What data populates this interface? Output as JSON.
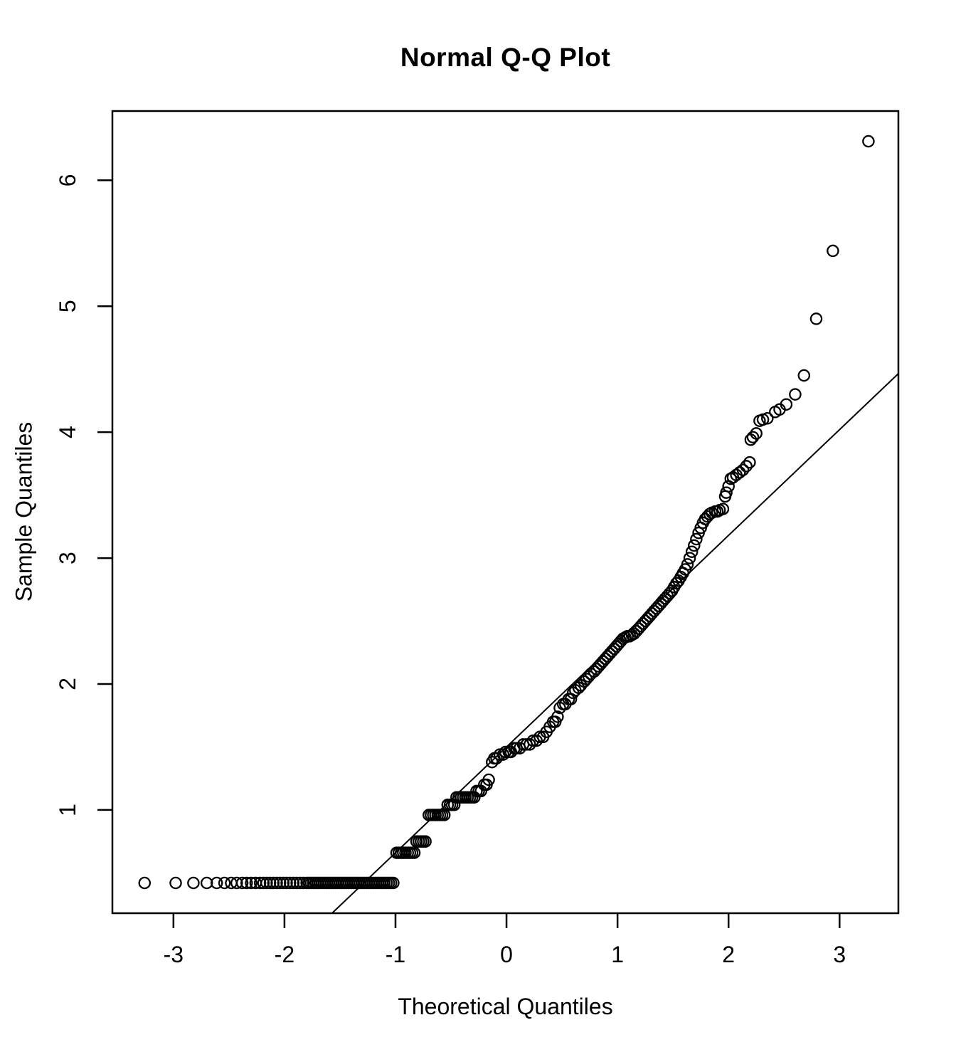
{
  "figure": {
    "background_color": "#ffffff",
    "foreground_color": "#000000"
  },
  "chart_data": {
    "type": "scatter",
    "title": "Normal Q-Q Plot",
    "xlabel": "Theoretical Quantiles",
    "ylabel": "Sample Quantiles",
    "legend": "none",
    "grid": "off",
    "marker": "open-circle",
    "axes": {
      "x": {
        "min": -3.55,
        "max": 3.53,
        "ticks": [
          -3,
          -2,
          -1,
          0,
          1,
          2,
          3
        ]
      },
      "y": {
        "min": 0.18,
        "max": 6.55,
        "ticks": [
          1,
          2,
          3,
          4,
          5,
          6
        ]
      }
    },
    "reference_line": {
      "intercept": 1.5,
      "slope": 0.84
    },
    "points": [
      [
        -3.26,
        0.42
      ],
      [
        -2.98,
        0.42
      ],
      [
        -2.82,
        0.42
      ],
      [
        -2.7,
        0.42
      ],
      [
        -2.61,
        0.42
      ],
      [
        -2.54,
        0.42
      ],
      [
        -2.48,
        0.42
      ],
      [
        -2.43,
        0.42
      ],
      [
        -2.38,
        0.42
      ],
      [
        -2.34,
        0.42
      ],
      [
        -2.3,
        0.42
      ],
      [
        -2.26,
        0.42
      ],
      [
        -2.22,
        0.42
      ],
      [
        -2.19,
        0.42
      ],
      [
        -2.16,
        0.42
      ],
      [
        -2.13,
        0.42
      ],
      [
        -2.1,
        0.42
      ],
      [
        -2.07,
        0.42
      ],
      [
        -2.04,
        0.42
      ],
      [
        -2.01,
        0.42
      ],
      [
        -1.98,
        0.42
      ],
      [
        -1.95,
        0.42
      ],
      [
        -1.92,
        0.42
      ],
      [
        -1.89,
        0.42
      ],
      [
        -1.86,
        0.42
      ],
      [
        -1.83,
        0.42
      ],
      [
        -1.8,
        0.42
      ],
      [
        -1.78,
        0.42
      ],
      [
        -1.76,
        0.42
      ],
      [
        -1.74,
        0.42
      ],
      [
        -1.72,
        0.42
      ],
      [
        -1.7,
        0.42
      ],
      [
        -1.68,
        0.42
      ],
      [
        -1.66,
        0.42
      ],
      [
        -1.64,
        0.42
      ],
      [
        -1.62,
        0.42
      ],
      [
        -1.6,
        0.42
      ],
      [
        -1.58,
        0.42
      ],
      [
        -1.56,
        0.42
      ],
      [
        -1.54,
        0.42
      ],
      [
        -1.52,
        0.42
      ],
      [
        -1.5,
        0.42
      ],
      [
        -1.48,
        0.42
      ],
      [
        -1.46,
        0.42
      ],
      [
        -1.44,
        0.42
      ],
      [
        -1.42,
        0.42
      ],
      [
        -1.4,
        0.42
      ],
      [
        -1.38,
        0.42
      ],
      [
        -1.36,
        0.42
      ],
      [
        -1.34,
        0.42
      ],
      [
        -1.32,
        0.42
      ],
      [
        -1.3,
        0.42
      ],
      [
        -1.28,
        0.42
      ],
      [
        -1.26,
        0.42
      ],
      [
        -1.24,
        0.42
      ],
      [
        -1.22,
        0.42
      ],
      [
        -1.2,
        0.42
      ],
      [
        -1.18,
        0.42
      ],
      [
        -1.16,
        0.42
      ],
      [
        -1.14,
        0.42
      ],
      [
        -1.12,
        0.42
      ],
      [
        -1.1,
        0.42
      ],
      [
        -1.08,
        0.42
      ],
      [
        -1.06,
        0.42
      ],
      [
        -1.04,
        0.42
      ],
      [
        -1.02,
        0.42
      ],
      [
        -0.99,
        0.66
      ],
      [
        -0.97,
        0.66
      ],
      [
        -0.95,
        0.66
      ],
      [
        -0.93,
        0.66
      ],
      [
        -0.91,
        0.66
      ],
      [
        -0.89,
        0.66
      ],
      [
        -0.87,
        0.66
      ],
      [
        -0.85,
        0.66
      ],
      [
        -0.83,
        0.66
      ],
      [
        -0.81,
        0.75
      ],
      [
        -0.79,
        0.75
      ],
      [
        -0.77,
        0.75
      ],
      [
        -0.75,
        0.75
      ],
      [
        -0.73,
        0.75
      ],
      [
        -0.7,
        0.96
      ],
      [
        -0.68,
        0.96
      ],
      [
        -0.66,
        0.96
      ],
      [
        -0.64,
        0.96
      ],
      [
        -0.62,
        0.96
      ],
      [
        -0.6,
        0.96
      ],
      [
        -0.58,
        0.96
      ],
      [
        -0.56,
        0.96
      ],
      [
        -0.53,
        1.04
      ],
      [
        -0.51,
        1.04
      ],
      [
        -0.49,
        1.04
      ],
      [
        -0.47,
        1.04
      ],
      [
        -0.45,
        1.1
      ],
      [
        -0.43,
        1.1
      ],
      [
        -0.41,
        1.1
      ],
      [
        -0.39,
        1.1
      ],
      [
        -0.37,
        1.1
      ],
      [
        -0.35,
        1.1
      ],
      [
        -0.33,
        1.1
      ],
      [
        -0.31,
        1.1
      ],
      [
        -0.29,
        1.1
      ],
      [
        -0.27,
        1.15
      ],
      [
        -0.25,
        1.15
      ],
      [
        -0.23,
        1.15
      ],
      [
        -0.2,
        1.2
      ],
      [
        -0.18,
        1.2
      ],
      [
        -0.16,
        1.24
      ],
      [
        -0.13,
        1.38
      ],
      [
        -0.11,
        1.41
      ],
      [
        -0.09,
        1.41
      ],
      [
        -0.06,
        1.44
      ],
      [
        -0.03,
        1.44
      ],
      [
        -0.01,
        1.46
      ],
      [
        0.02,
        1.46
      ],
      [
        0.04,
        1.46
      ],
      [
        0.07,
        1.49
      ],
      [
        0.09,
        1.49
      ],
      [
        0.12,
        1.49
      ],
      [
        0.15,
        1.52
      ],
      [
        0.18,
        1.52
      ],
      [
        0.21,
        1.52
      ],
      [
        0.24,
        1.55
      ],
      [
        0.27,
        1.55
      ],
      [
        0.3,
        1.58
      ],
      [
        0.33,
        1.58
      ],
      [
        0.36,
        1.62
      ],
      [
        0.39,
        1.66
      ],
      [
        0.42,
        1.7
      ],
      [
        0.44,
        1.7
      ],
      [
        0.46,
        1.74
      ],
      [
        0.48,
        1.81
      ],
      [
        0.51,
        1.84
      ],
      [
        0.53,
        1.84
      ],
      [
        0.56,
        1.88
      ],
      [
        0.58,
        1.88
      ],
      [
        0.6,
        1.93
      ],
      [
        0.62,
        1.95
      ],
      [
        0.65,
        1.97
      ],
      [
        0.67,
        1.99
      ],
      [
        0.7,
        2.02
      ],
      [
        0.72,
        2.04
      ],
      [
        0.74,
        2.06
      ],
      [
        0.76,
        2.08
      ],
      [
        0.79,
        2.1
      ],
      [
        0.81,
        2.12
      ],
      [
        0.83,
        2.14
      ],
      [
        0.85,
        2.16
      ],
      [
        0.87,
        2.18
      ],
      [
        0.89,
        2.2
      ],
      [
        0.91,
        2.22
      ],
      [
        0.93,
        2.24
      ],
      [
        0.95,
        2.26
      ],
      [
        0.97,
        2.28
      ],
      [
        0.99,
        2.3
      ],
      [
        1.01,
        2.32
      ],
      [
        1.03,
        2.34
      ],
      [
        1.05,
        2.36
      ],
      [
        1.07,
        2.37
      ],
      [
        1.09,
        2.38
      ],
      [
        1.11,
        2.38
      ],
      [
        1.13,
        2.39
      ],
      [
        1.15,
        2.4
      ],
      [
        1.17,
        2.42
      ],
      [
        1.19,
        2.44
      ],
      [
        1.21,
        2.46
      ],
      [
        1.23,
        2.48
      ],
      [
        1.25,
        2.5
      ],
      [
        1.27,
        2.52
      ],
      [
        1.29,
        2.54
      ],
      [
        1.31,
        2.56
      ],
      [
        1.33,
        2.58
      ],
      [
        1.35,
        2.6
      ],
      [
        1.37,
        2.62
      ],
      [
        1.39,
        2.64
      ],
      [
        1.41,
        2.66
      ],
      [
        1.43,
        2.68
      ],
      [
        1.45,
        2.7
      ],
      [
        1.47,
        2.72
      ],
      [
        1.49,
        2.74
      ],
      [
        1.51,
        2.77
      ],
      [
        1.53,
        2.8
      ],
      [
        1.55,
        2.82
      ],
      [
        1.57,
        2.85
      ],
      [
        1.59,
        2.88
      ],
      [
        1.61,
        2.91
      ],
      [
        1.63,
        2.95
      ],
      [
        1.65,
        3.0
      ],
      [
        1.67,
        3.05
      ],
      [
        1.69,
        3.1
      ],
      [
        1.71,
        3.15
      ],
      [
        1.73,
        3.2
      ],
      [
        1.75,
        3.24
      ],
      [
        1.77,
        3.28
      ],
      [
        1.79,
        3.31
      ],
      [
        1.81,
        3.33
      ],
      [
        1.83,
        3.35
      ],
      [
        1.85,
        3.36
      ],
      [
        1.88,
        3.37
      ],
      [
        1.9,
        3.37
      ],
      [
        1.92,
        3.38
      ],
      [
        1.95,
        3.39
      ],
      [
        1.97,
        3.49
      ],
      [
        1.98,
        3.52
      ],
      [
        2.0,
        3.57
      ],
      [
        2.02,
        3.63
      ],
      [
        2.04,
        3.64
      ],
      [
        2.07,
        3.66
      ],
      [
        2.1,
        3.68
      ],
      [
        2.13,
        3.7
      ],
      [
        2.16,
        3.73
      ],
      [
        2.19,
        3.76
      ],
      [
        2.2,
        3.94
      ],
      [
        2.22,
        3.96
      ],
      [
        2.25,
        3.99
      ],
      [
        2.28,
        4.09
      ],
      [
        2.31,
        4.1
      ],
      [
        2.35,
        4.11
      ],
      [
        2.42,
        4.16
      ],
      [
        2.46,
        4.18
      ],
      [
        2.52,
        4.22
      ],
      [
        2.6,
        4.3
      ],
      [
        2.68,
        4.45
      ],
      [
        2.79,
        4.9
      ],
      [
        2.94,
        5.44
      ],
      [
        3.26,
        6.31
      ]
    ]
  }
}
